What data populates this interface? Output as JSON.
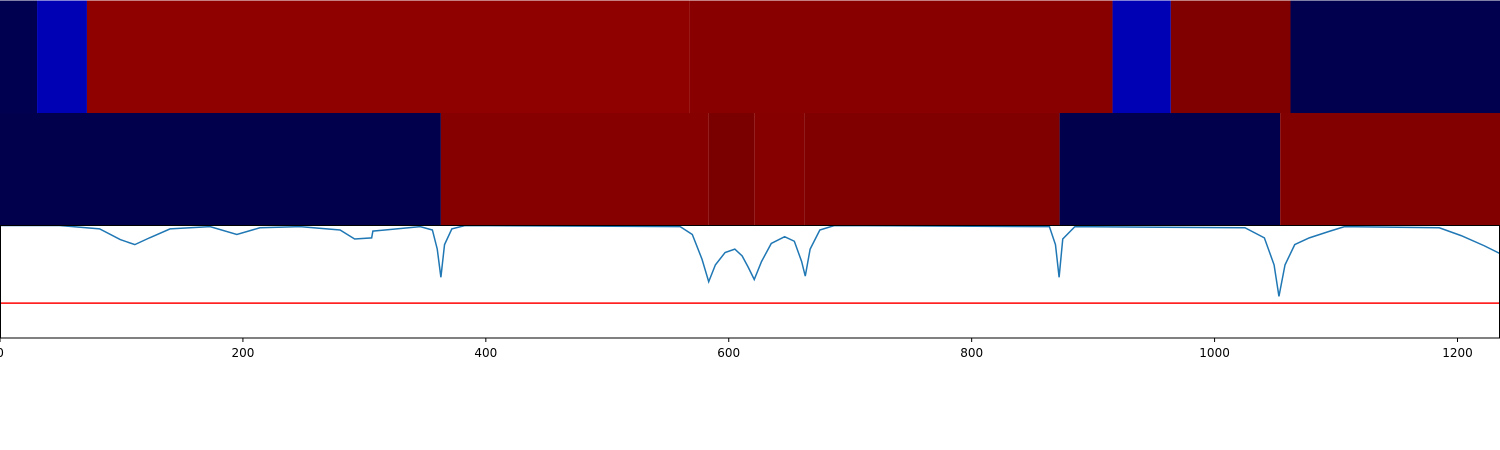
{
  "chart_data": [
    {
      "type": "heatstrip",
      "xlim": [
        0,
        1235
      ],
      "bins": [
        0,
        30.5,
        71.6,
        568,
        916,
        964,
        1062.5,
        1235
      ],
      "colors": [
        "#000050",
        "#0000b4",
        "#8f0000",
        "#880000",
        "#0000b4",
        "#800000",
        "#00004f"
      ]
    },
    {
      "type": "heatstrip",
      "xlim": [
        0,
        1235
      ],
      "bins": [
        0,
        363,
        583.5,
        621,
        662.5,
        872.4,
        1054,
        1235
      ],
      "colors": [
        "#00004c",
        "#870000",
        "#7a0000",
        "#860000",
        "#800000",
        "#00004c",
        "#820000"
      ]
    },
    {
      "type": "line",
      "xlim": [
        0,
        1235
      ],
      "ylim": [
        0,
        1
      ],
      "xticks": [
        0,
        200,
        400,
        600,
        800,
        1000,
        1200
      ],
      "hline": 0.31,
      "hline_color": "#ff0000",
      "series": [
        {
          "color": "#1f77b4",
          "x": [
            0,
            49,
            82,
            99,
            111,
            123,
            140,
            173,
            195,
            214,
            247,
            280,
            292,
            306,
            307,
            346,
            356,
            360,
            363,
            366,
            372,
            383,
            560,
            570,
            578,
            583.5,
            589,
            597,
            605,
            611,
            616,
            621,
            627,
            635,
            646,
            654,
            660,
            663,
            667,
            675,
            687,
            864,
            869,
            872,
            875,
            885,
            1025,
            1041,
            1049,
            1053,
            1058,
            1066,
            1078,
            1095,
            1107,
            1185,
            1203,
            1222,
            1235
          ],
          "values": [
            1.0,
            1.0,
            0.97,
            0.875,
            0.83,
            0.89,
            0.97,
            0.99,
            0.92,
            0.98,
            0.99,
            0.96,
            0.88,
            0.89,
            0.95,
            0.99,
            0.96,
            0.79,
            0.54,
            0.83,
            0.97,
            1.0,
            0.99,
            0.92,
            0.7,
            0.5,
            0.65,
            0.76,
            0.79,
            0.73,
            0.63,
            0.52,
            0.68,
            0.84,
            0.9,
            0.86,
            0.68,
            0.55,
            0.79,
            0.96,
            1.0,
            0.99,
            0.83,
            0.54,
            0.88,
            0.99,
            0.98,
            0.89,
            0.65,
            0.37,
            0.65,
            0.83,
            0.89,
            0.95,
            0.99,
            0.98,
            0.91,
            0.82,
            0.75
          ]
        }
      ]
    }
  ]
}
